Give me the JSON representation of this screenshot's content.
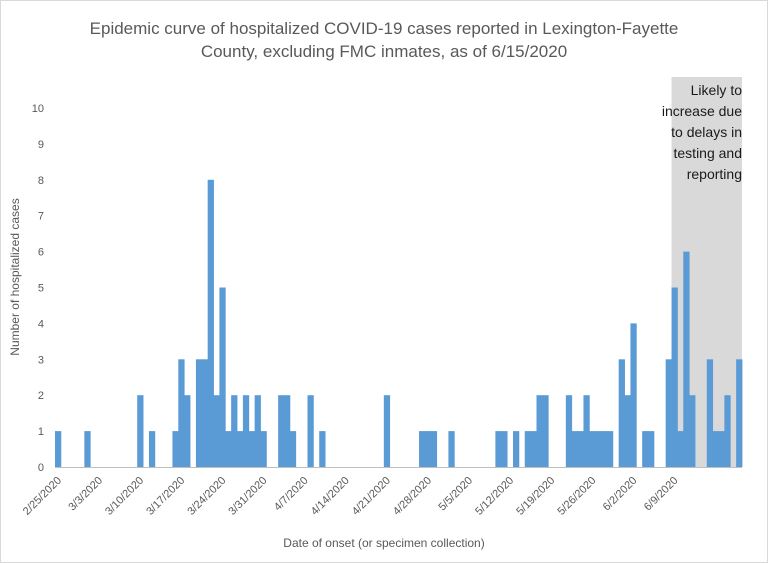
{
  "chart_data": {
    "type": "bar",
    "title_line1": "Epidemic curve of hospitalized COVID-19 cases reported in Lexington-Fayette",
    "title_line2": "County, excluding FMC inmates, as of 6/15/2020",
    "xlabel": "Date of onset (or specimen collection)",
    "ylabel": "Number of hospitalized cases",
    "ylim": [
      0,
      10
    ],
    "yticks": [
      0,
      1,
      2,
      3,
      4,
      5,
      6,
      7,
      8,
      9,
      10
    ],
    "x_tick_labels": [
      "2/25/2020",
      "3/3/2020",
      "3/10/2020",
      "3/17/2020",
      "3/24/2020",
      "3/31/2020",
      "4/7/2020",
      "4/14/2020",
      "4/21/2020",
      "4/28/2020",
      "5/5/2020",
      "5/12/2020",
      "5/19/2020",
      "5/26/2020",
      "6/2/2020",
      "6/9/2020"
    ],
    "first_date": "2/25/2020",
    "grid": false,
    "bar_color": "#5b9bd5",
    "shade_color": "#d9d9d9",
    "shaded_from": "6/9/2020",
    "annotation": "Likely to increase due to delays in testing and reporting",
    "annotation_lines": [
      "Likely to",
      "increase due",
      "to delays in",
      "testing and",
      "reporting"
    ],
    "values": [
      1,
      0,
      0,
      0,
      0,
      1,
      0,
      0,
      0,
      0,
      0,
      0,
      0,
      0,
      2,
      0,
      1,
      0,
      0,
      0,
      1,
      3,
      2,
      0,
      3,
      3,
      8,
      2,
      5,
      1,
      2,
      1,
      2,
      1,
      2,
      1,
      0,
      0,
      2,
      2,
      1,
      0,
      0,
      2,
      0,
      1,
      0,
      0,
      0,
      0,
      0,
      0,
      0,
      0,
      0,
      0,
      2,
      0,
      0,
      0,
      0,
      0,
      1,
      1,
      1,
      0,
      0,
      1,
      0,
      0,
      0,
      0,
      0,
      0,
      0,
      1,
      1,
      0,
      1,
      0,
      1,
      1,
      2,
      2,
      0,
      0,
      0,
      2,
      1,
      1,
      2,
      1,
      1,
      1,
      1,
      0,
      3,
      2,
      4,
      0,
      1,
      1,
      0,
      0,
      3,
      5,
      1,
      6,
      2,
      0,
      0,
      3,
      1,
      1,
      2,
      0,
      3
    ]
  }
}
